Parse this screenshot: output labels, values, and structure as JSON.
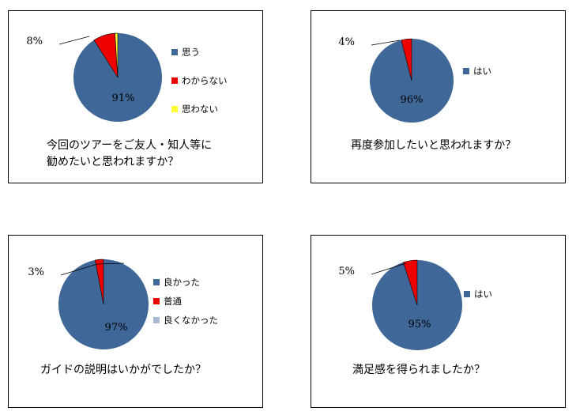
{
  "chart_data": [
    {
      "type": "pie",
      "title": "今回のツアーをご友人・知人等に\n勧めたいと思われますか？",
      "slices": [
        {
          "label": "思う",
          "value": 91,
          "color": "#3f6898"
        },
        {
          "label": "わからない",
          "value": 8,
          "color": "#ee0000"
        },
        {
          "label": "思わない",
          "value": 1,
          "color": "#ffff33"
        }
      ],
      "data_labels": [
        "91%",
        "8%"
      ],
      "legend_position": "right"
    },
    {
      "type": "pie",
      "title": "再度参加したいと思われますか？",
      "slices": [
        {
          "label": "はい",
          "value": 96,
          "color": "#3f6898"
        },
        {
          "label": "",
          "value": 4,
          "color": "#ee0000"
        }
      ],
      "data_labels": [
        "96%",
        "4%"
      ],
      "legend_position": "right"
    },
    {
      "type": "pie",
      "title": "ガイドの説明はいかがでしたか？",
      "slices": [
        {
          "label": "良かった",
          "value": 97,
          "color": "#3f6898"
        },
        {
          "label": "普通",
          "value": 3,
          "color": "#ee0000"
        },
        {
          "label": "良くなかった",
          "value": 0,
          "color": "#a6b8d1"
        }
      ],
      "data_labels": [
        "97%",
        "3%"
      ],
      "legend_position": "right"
    },
    {
      "type": "pie",
      "title": "満足感を得られましたか？",
      "slices": [
        {
          "label": "はい",
          "value": 95,
          "color": "#3f6898"
        },
        {
          "label": "",
          "value": 5,
          "color": "#ee0000"
        }
      ],
      "data_labels": [
        "95%",
        "5%"
      ],
      "legend_position": "right"
    }
  ]
}
